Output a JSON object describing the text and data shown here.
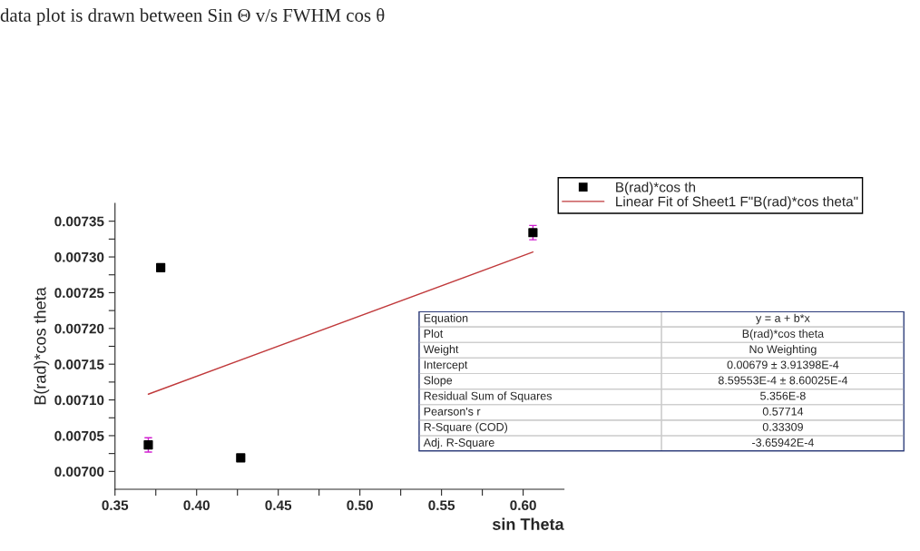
{
  "chart_data": {
    "type": "scatter",
    "title": "data plot is drawn between Sin Θ v/s FWHM cos θ",
    "xlabel": "sin Theta",
    "ylabel": "B(rad)*cos theta",
    "series": [
      {
        "name": "B(rad)*cos th",
        "color": "#000000",
        "marker": "square",
        "x": [
          0.3704,
          0.378,
          0.427,
          0.606
        ],
        "values": [
          0.007037,
          0.007285,
          0.007019,
          0.007334
        ],
        "errors": [
          1e-05,
          null,
          null,
          1e-05
        ]
      },
      {
        "name": "Linear Fit of Sheet1 F\"B(rad)*cos theta\"",
        "type": "line",
        "color": "#c0393b",
        "marker": "none",
        "line_style": "solid",
        "x": [
          0.3704,
          0.606
        ],
        "values": [
          0.007108,
          0.007307
        ]
      }
    ],
    "xlim": [
      0.35,
      0.625
    ],
    "ylim": [
      0.006975,
      0.007375
    ],
    "xticks": [
      {
        "value": 0.35,
        "label": "0.35"
      },
      {
        "value": 0.375,
        "label": null
      },
      {
        "value": 0.4,
        "label": "0.40"
      },
      {
        "value": 0.425,
        "label": null
      },
      {
        "value": 0.45,
        "label": "0.45"
      },
      {
        "value": 0.475,
        "label": null
      },
      {
        "value": 0.5,
        "label": "0.50"
      },
      {
        "value": 0.525,
        "label": null
      },
      {
        "value": 0.55,
        "label": "0.55"
      },
      {
        "value": 0.575,
        "label": null
      },
      {
        "value": 0.6,
        "label": "0.60"
      }
    ],
    "yticks": [
      {
        "value": 0.007,
        "label": "0.00700"
      },
      {
        "value": 0.007025,
        "label": null
      },
      {
        "value": 0.00705,
        "label": "0.00705"
      },
      {
        "value": 0.007075,
        "label": null
      },
      {
        "value": 0.0071,
        "label": "0.00710"
      },
      {
        "value": 0.007125,
        "label": null
      },
      {
        "value": 0.00715,
        "label": "0.00715"
      },
      {
        "value": 0.007175,
        "label": null
      },
      {
        "value": 0.0072,
        "label": "0.00720"
      },
      {
        "value": 0.007225,
        "label": null
      },
      {
        "value": 0.00725,
        "label": "0.00725"
      },
      {
        "value": 0.007275,
        "label": null
      },
      {
        "value": 0.0073,
        "label": "0.00730"
      },
      {
        "value": 0.007325,
        "label": null
      },
      {
        "value": 0.00735,
        "label": "0.00735"
      }
    ],
    "grid": false,
    "legend": "top right",
    "annotations": [
      "Equation",
      "y = a + b*x",
      "Plot",
      "B(rad)*cos theta",
      "Weight",
      "No Weighting",
      "Intercept",
      "0.00679 ± 3.91398E-4",
      "Slope",
      "8.59553E-4 ± 8.60025E-4",
      "Residual Sum of Squares",
      "5.356E-8",
      "Pearson's r",
      "0.57714",
      "R-Square (COD)",
      "0.33309",
      "Adj. R-Square",
      "-3.65942E-4"
    ]
  }
}
